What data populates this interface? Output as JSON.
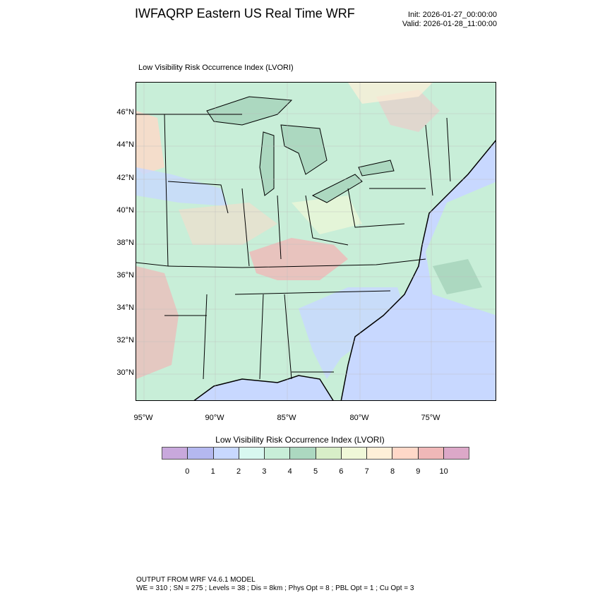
{
  "header": {
    "title": "IWFAQRP Eastern US Real Time WRF",
    "init": "Init: 2026-01-27_00:00:00",
    "valid": "Valid: 2026-01-28_11:00:00"
  },
  "plot": {
    "subtitle": "Low Visibility Risk Occurrence Index   (LVORI)",
    "lat_labels": [
      "46°N",
      "44°N",
      "42°N",
      "40°N",
      "38°N",
      "36°N",
      "34°N",
      "32°N",
      "30°N"
    ],
    "lon_labels": [
      "95°W",
      "90°W",
      "85°W",
      "80°W",
      "75°W"
    ]
  },
  "colorbar": {
    "title": "Low Visibility Risk Occurrence Index  (LVORI)",
    "labels": [
      "0",
      "1",
      "2",
      "3",
      "4",
      "5",
      "6",
      "7",
      "8",
      "9",
      "10"
    ],
    "colors": [
      "#c8a8dc",
      "#b4b8f0",
      "#c8d8ff",
      "#d8f8f0",
      "#c8eed8",
      "#acd8c0",
      "#d8eec8",
      "#f0f8d8",
      "#fff0d8",
      "#ffd8c8",
      "#f0b8b8",
      "#dca8c8"
    ]
  },
  "footer": {
    "line1": "OUTPUT FROM WRF V4.6.1 MODEL",
    "line2": "WE = 310 ; SN = 275 ; Levels = 38 ; Dis = 8km ; Phys Opt = 8 ; PBL Opt = 1 ; Cu Opt = 3"
  }
}
